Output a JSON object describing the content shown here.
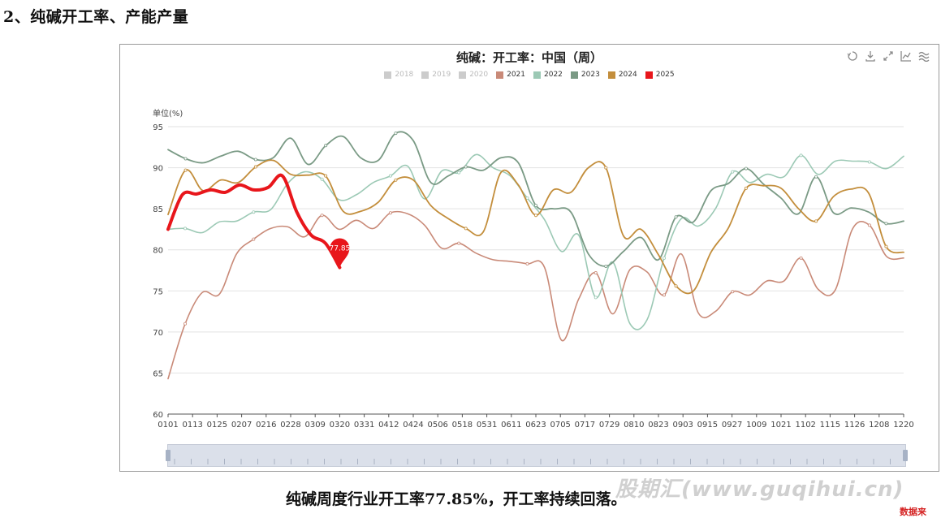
{
  "heading": "2、纯碱开工率、产能产量",
  "caption": "纯碱周度行业开工率77.85%，开工率持续回落。",
  "watermark": "股期汇(www.guqihui.cn)",
  "corner_mark": "数据来",
  "toolbox": [
    "restore-icon",
    "download-icon",
    "zoom-icon",
    "line-chart-icon",
    "area-chart-icon"
  ],
  "chart_data": {
    "type": "line",
    "title": "纯碱：开工率：中国（周）",
    "ylabel": "单位(%)",
    "ylim": [
      60,
      95
    ],
    "yticks": [
      60,
      65,
      70,
      75,
      80,
      85,
      90,
      95
    ],
    "x_ticks": [
      "0101",
      "0113",
      "0125",
      "0207",
      "0216",
      "0228",
      "0309",
      "0320",
      "0331",
      "0412",
      "0424",
      "0506",
      "0518",
      "0531",
      "0611",
      "0623",
      "0705",
      "0717",
      "0729",
      "0810",
      "0823",
      "0903",
      "0915",
      "0927",
      "1009",
      "1021",
      "1102",
      "1115",
      "1126",
      "1208",
      "1220"
    ],
    "grid": true,
    "legend_position": "top-center",
    "legend": [
      {
        "name": "2018",
        "color": "#cccccc",
        "active": false
      },
      {
        "name": "2019",
        "color": "#cccccc",
        "active": false
      },
      {
        "name": "2020",
        "color": "#cccccc",
        "active": false
      },
      {
        "name": "2021",
        "color": "#c98a78",
        "active": true
      },
      {
        "name": "2022",
        "color": "#9cc9b5",
        "active": true
      },
      {
        "name": "2023",
        "color": "#7a9a85",
        "active": true
      },
      {
        "name": "2024",
        "color": "#c38e3c",
        "active": true
      },
      {
        "name": "2025",
        "color": "#e8161b",
        "active": true
      }
    ],
    "series": [
      {
        "name": "2021",
        "color": "#c98a78",
        "width": 1.6,
        "values": [
          64.3,
          71.0,
          74.8,
          74.6,
          79.5,
          81.3,
          82.6,
          82.8,
          81.6,
          84.2,
          82.5,
          83.6,
          82.6,
          84.5,
          84.4,
          83.0,
          80.2,
          80.8,
          79.6,
          78.8,
          78.6,
          78.3,
          77.9,
          69.0,
          74.0,
          77.2,
          72.2,
          77.6,
          77.3,
          74.5,
          79.5,
          72.3,
          72.5,
          74.9,
          74.5,
          76.2,
          76.2,
          79.0,
          75.2,
          75.1,
          82.5,
          83.0,
          79.2,
          79.0
        ]
      },
      {
        "name": "2022",
        "color": "#9cc9b5",
        "width": 1.6,
        "values": [
          82.5,
          82.6,
          82.1,
          83.4,
          83.5,
          84.6,
          84.9,
          88.1,
          89.5,
          88.6,
          86.1,
          86.7,
          88.2,
          89.0,
          90.2,
          86.2,
          89.6,
          89.4,
          91.6,
          90.0,
          89.0,
          86.3,
          83.7,
          79.8,
          81.8,
          74.2,
          78.5,
          71.0,
          71.5,
          79.0,
          83.8,
          82.9,
          85.0,
          89.5,
          88.2,
          89.2,
          88.9,
          91.5,
          89.2,
          90.8,
          90.8,
          90.7,
          89.9,
          91.4
        ]
      },
      {
        "name": "2023",
        "color": "#7a9a85",
        "width": 1.8,
        "values": [
          92.2,
          91.1,
          90.6,
          91.4,
          92.0,
          91.0,
          91.2,
          93.6,
          90.4,
          92.7,
          93.8,
          91.2,
          90.9,
          94.2,
          93.3,
          88.2,
          89.0,
          90.1,
          89.7,
          91.2,
          90.6,
          85.4,
          85.0,
          84.6,
          79.5,
          78.0,
          79.8,
          81.5,
          78.8,
          84.0,
          83.4,
          87.2,
          88.1,
          89.9,
          88.0,
          86.3,
          84.4,
          88.9,
          84.5,
          85.1,
          84.6,
          83.2,
          83.5
        ]
      },
      {
        "name": "2024",
        "color": "#c38e3c",
        "width": 1.8,
        "values": [
          84.3,
          89.7,
          87.2,
          88.5,
          88.2,
          90.1,
          90.9,
          89.2,
          89.1,
          89.0,
          84.7,
          84.7,
          85.8,
          88.5,
          88.5,
          85.4,
          83.8,
          82.6,
          82.2,
          89.4,
          87.9,
          84.2,
          87.3,
          87.0,
          90.0,
          90.0,
          81.7,
          82.5,
          79.4,
          75.6,
          75.0,
          79.7,
          82.7,
          87.5,
          87.8,
          87.5,
          85.0,
          83.5,
          86.5,
          87.4,
          86.9,
          80.4,
          79.7
        ]
      },
      {
        "name": "2025",
        "color": "#e8161b",
        "width": 4,
        "values": [
          82.5,
          86.7,
          86.8,
          87.3,
          87.0,
          87.9,
          87.3,
          87.6,
          89.0,
          84.6,
          81.8,
          80.8,
          77.85
        ]
      }
    ],
    "marker": {
      "series": "2025",
      "label": "77.85",
      "value": 77.85
    }
  }
}
